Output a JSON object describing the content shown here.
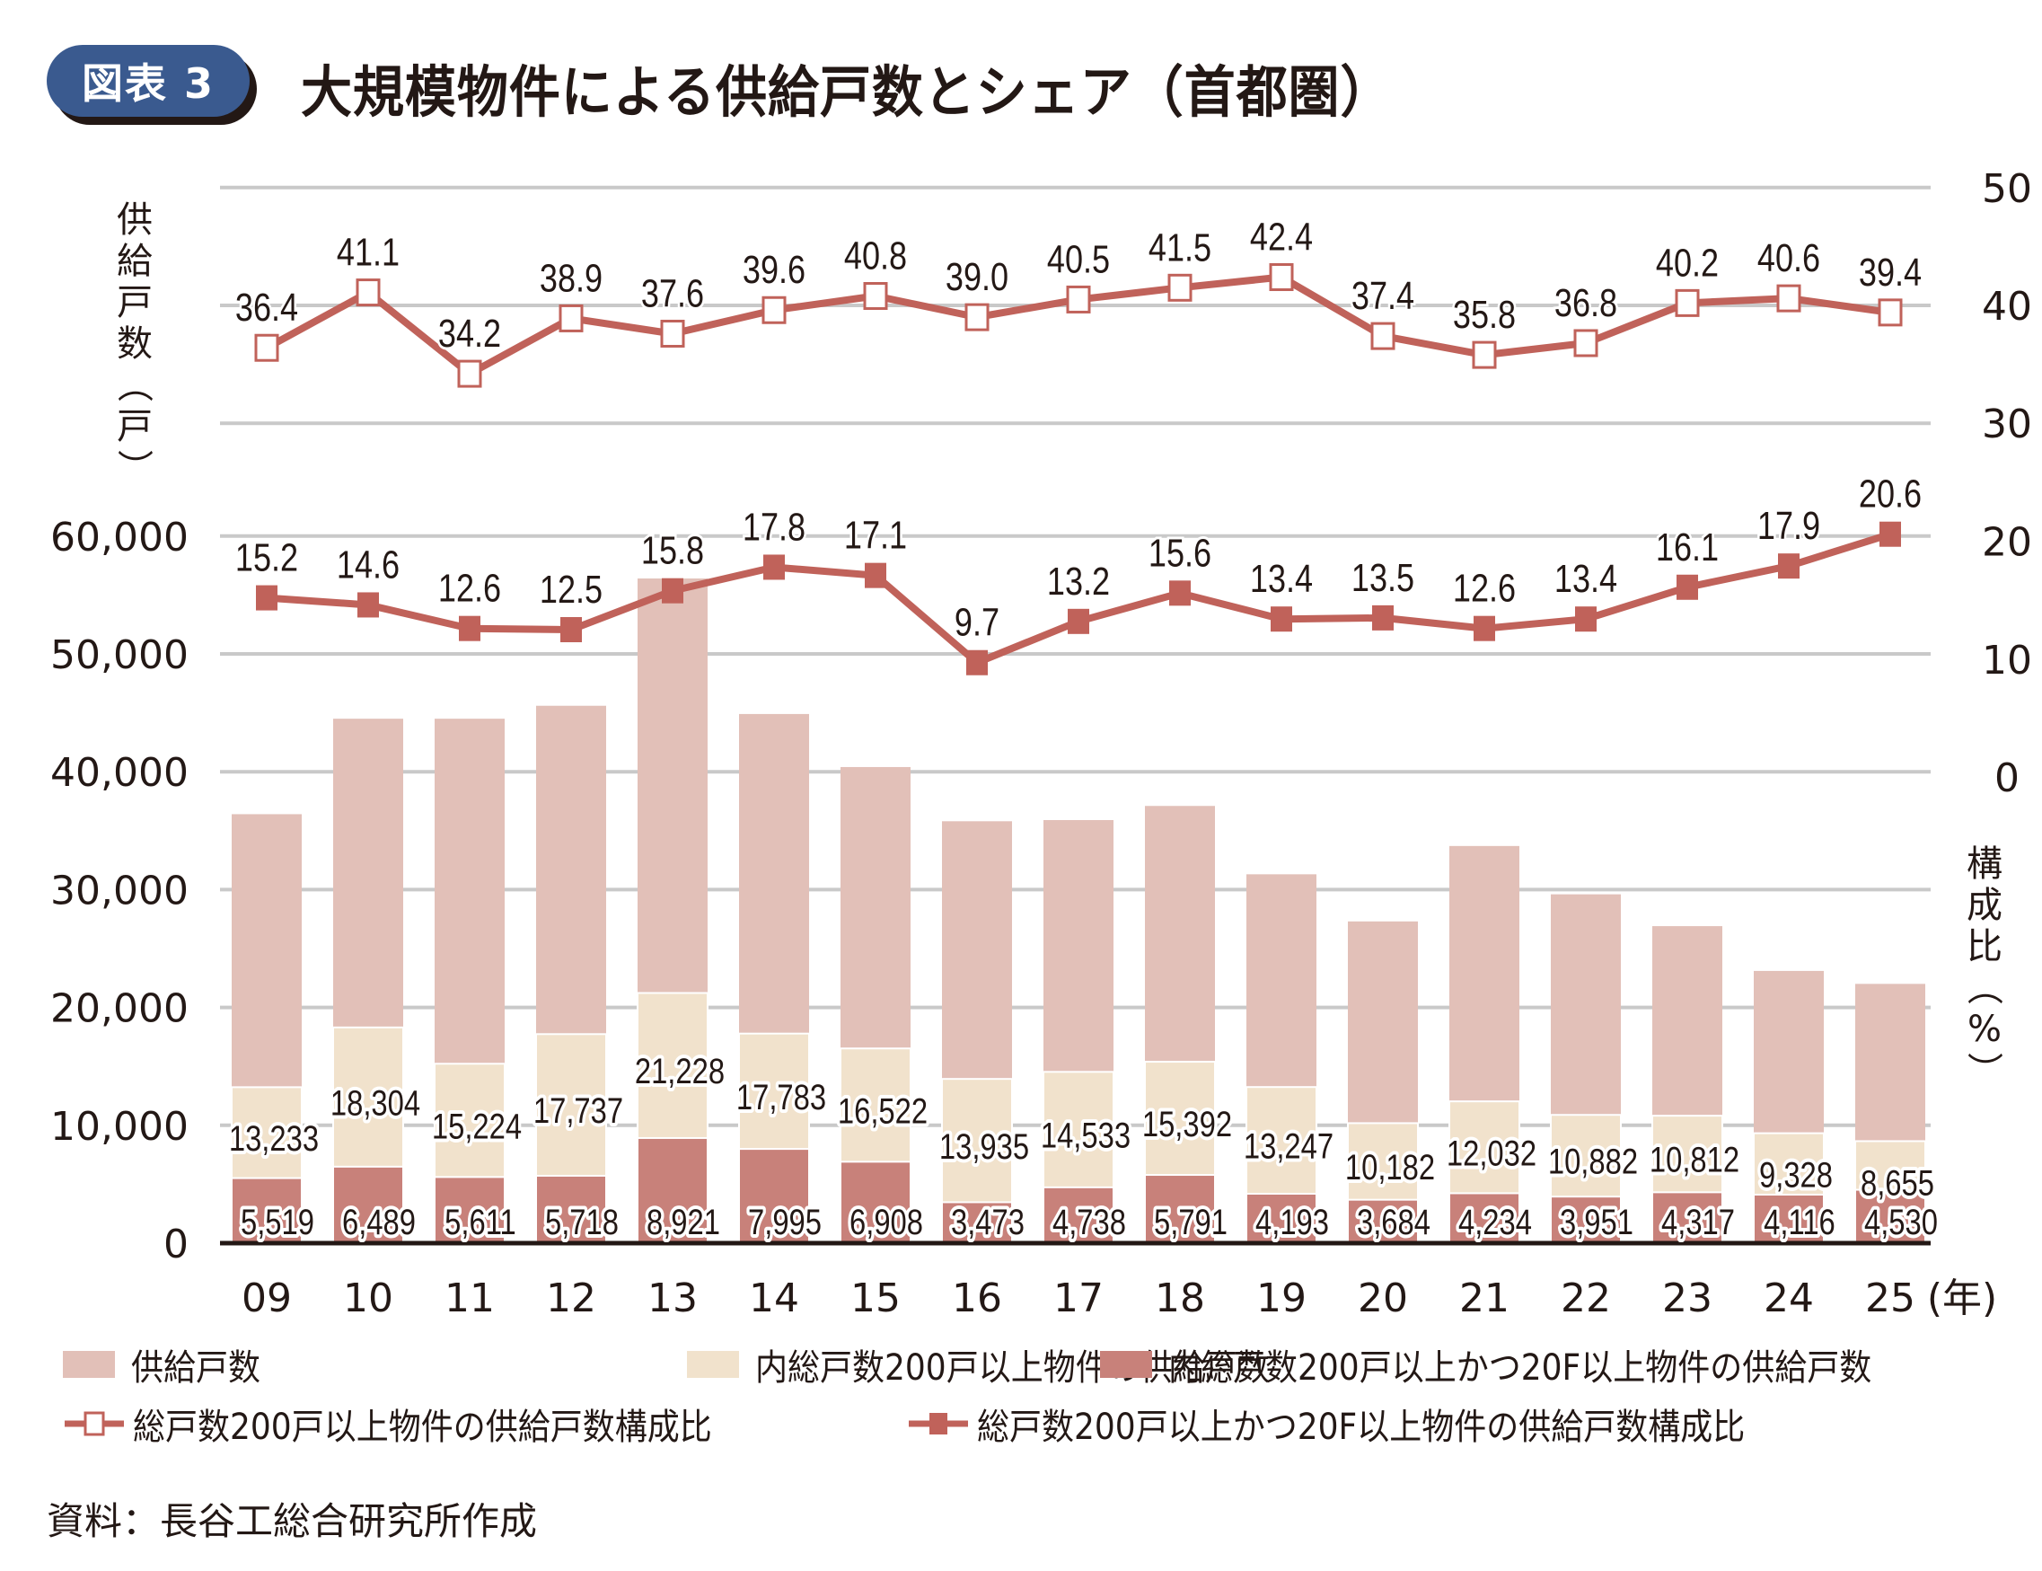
{
  "header": {
    "badge": "図表 3",
    "title": "大規模物件による供給戸数とシェア（首都圏）"
  },
  "colors": {
    "total_bar": "#e2c0b8",
    "bar_200": "#f1e2cc",
    "bar_200_20f": "#c8817a",
    "line": "#c0625a",
    "badge": "#3a5a8f",
    "grid": "#c9c9c9"
  },
  "source": "資料：長谷工総合研究所作成",
  "chart_data": {
    "type": "bar",
    "title": "大規模物件による供給戸数とシェア（首都圏）",
    "xlabel": "(年)",
    "ylabel_left": "供給戸数（戸）",
    "ylabel_right": "構成比（%）",
    "categories": [
      "09",
      "10",
      "11",
      "12",
      "13",
      "14",
      "15",
      "16",
      "17",
      "18",
      "19",
      "20",
      "21",
      "22",
      "23",
      "24",
      "25"
    ],
    "left_axis": {
      "ylim": [
        0,
        60000
      ],
      "ticks": [
        "0",
        "10,000",
        "20,000",
        "30,000",
        "40,000",
        "50,000",
        "60,000"
      ]
    },
    "right_axis_lower": {
      "ylim": [
        0,
        20
      ],
      "ticks": [
        "0",
        "10",
        "20"
      ]
    },
    "right_axis_upper": {
      "ylim": [
        30,
        50
      ],
      "ticks": [
        "30",
        "40",
        "50"
      ]
    },
    "grid": true,
    "series": [
      {
        "name": "供給戸数",
        "kind": "bar",
        "axis": "left",
        "values": [
          36400,
          44500,
          44500,
          45600,
          56400,
          44900,
          40400,
          35800,
          35900,
          37100,
          31300,
          27300,
          33700,
          29600,
          26900,
          23100,
          22000
        ],
        "labels": []
      },
      {
        "name": "内総戸数200戸以上物件の供給戸数",
        "kind": "bar",
        "axis": "left",
        "values": [
          13233,
          18304,
          15224,
          17737,
          21228,
          17783,
          16522,
          13935,
          14533,
          15392,
          13247,
          10182,
          12032,
          10882,
          10812,
          9328,
          8655
        ],
        "labels": [
          "13,233",
          "18,304",
          "15,224",
          "17,737",
          "21,228",
          "17,783",
          "16,522",
          "13,935",
          "14,533",
          "15,392",
          "13,247",
          "10,182",
          "12,032",
          "10,882",
          "10,812",
          "9,328",
          "8,655"
        ]
      },
      {
        "name": "内総戸数200戸以上かつ20F以上物件の供給戸数",
        "kind": "bar",
        "axis": "left",
        "values": [
          5519,
          6489,
          5611,
          5718,
          8921,
          7995,
          6908,
          3473,
          4738,
          5791,
          4193,
          3684,
          4234,
          3951,
          4317,
          4116,
          4530
        ],
        "labels": [
          "5,519",
          "6,489",
          "5,611",
          "5,718",
          "8,921",
          "7,995",
          "6,908",
          "3,473",
          "4,738",
          "5,791",
          "4,193",
          "3,684",
          "4,234",
          "3,951",
          "4,317",
          "4,116",
          "4,530"
        ]
      },
      {
        "name": "総戸数200戸以上物件の供給戸数構成比",
        "kind": "line",
        "axis": "right_upper",
        "marker": "hollow-square",
        "values": [
          36.4,
          41.1,
          34.2,
          38.9,
          37.6,
          39.6,
          40.8,
          39.0,
          40.5,
          41.5,
          42.4,
          37.4,
          35.8,
          36.8,
          40.2,
          40.6,
          39.4
        ],
        "labels": [
          "36.4",
          "41.1",
          "34.2",
          "38.9",
          "37.6",
          "39.6",
          "40.8",
          "39.0",
          "40.5",
          "41.5",
          "42.4",
          "37.4",
          "35.8",
          "36.8",
          "40.2",
          "40.6",
          "39.4"
        ]
      },
      {
        "name": "総戸数200戸以上かつ20F以上物件の供給戸数構成比",
        "kind": "line",
        "axis": "right_lower",
        "marker": "filled-square",
        "values": [
          15.2,
          14.6,
          12.6,
          12.5,
          15.8,
          17.8,
          17.1,
          9.7,
          13.2,
          15.6,
          13.4,
          13.5,
          12.6,
          13.4,
          16.1,
          17.9,
          20.6
        ],
        "labels": [
          "15.2",
          "14.6",
          "12.6",
          "12.5",
          "15.8",
          "17.8",
          "17.1",
          "9.7",
          "13.2",
          "15.6",
          "13.4",
          "13.5",
          "12.6",
          "13.4",
          "16.1",
          "17.9",
          "20.6"
        ]
      }
    ],
    "legend": [
      {
        "label": "供給戸数",
        "type": "swatch",
        "color": "#e2c0b8"
      },
      {
        "label": "内総戸数200戸以上物件の供給戸数",
        "type": "swatch",
        "color": "#f1e2cc"
      },
      {
        "label": "内総戸数200戸以上かつ20F以上物件の供給戸数",
        "type": "swatch",
        "color": "#c8817a"
      },
      {
        "label": "総戸数200戸以上物件の供給戸数構成比",
        "type": "line-hollow"
      },
      {
        "label": "総戸数200戸以上かつ20F以上物件の供給戸数構成比",
        "type": "line-filled"
      }
    ],
    "legend_position": "bottom"
  }
}
